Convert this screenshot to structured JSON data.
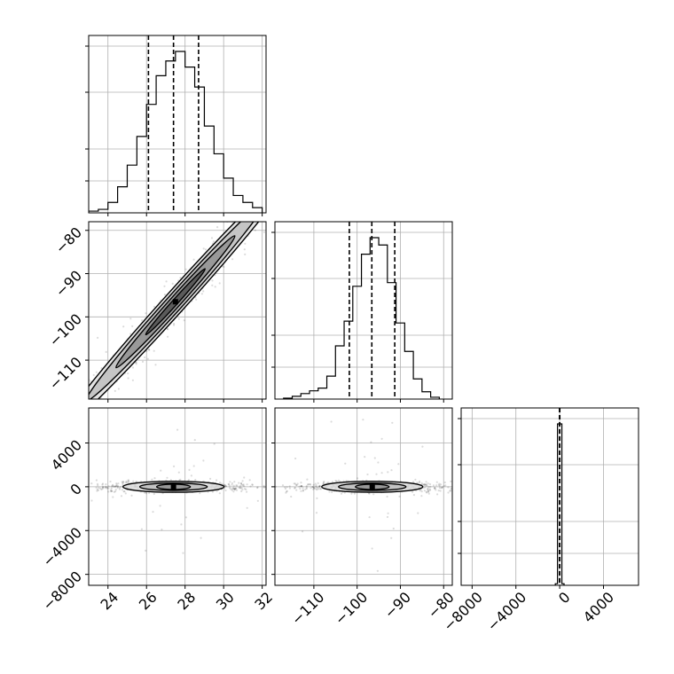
{
  "chart_data": {
    "type": "corner",
    "grid": true,
    "parameters": [
      {
        "range": [
          23,
          32.2
        ],
        "ticks": [
          24,
          26,
          28,
          30,
          32
        ],
        "tick_labels": [
          "24",
          "26",
          "28",
          "30",
          "32"
        ],
        "quantiles": [
          26.1,
          27.4,
          28.7
        ]
      },
      {
        "range": [
          -119,
          -78
        ],
        "ticks": [
          -110,
          -100,
          -90,
          -80
        ],
        "tick_labels": [
          "−110",
          "−100",
          "−90",
          "−80"
        ],
        "quantiles": [
          -101.8,
          -96.6,
          -91.3
        ]
      },
      {
        "range": [
          -9000,
          7200
        ],
        "ticks": [
          -8000,
          -4000,
          0,
          4000
        ],
        "tick_labels": [
          "−8000",
          "−4000",
          "0",
          "4000"
        ],
        "quantiles": [
          -10,
          0,
          10
        ]
      }
    ],
    "histograms": [
      {
        "param": 0,
        "bin_edges": [
          23,
          23.5,
          24,
          24.5,
          25,
          25.5,
          26,
          26.5,
          27,
          27.5,
          28,
          28.5,
          29,
          29.5,
          30,
          30.5,
          31,
          31.5,
          32
        ],
        "counts": [
          2,
          4,
          12,
          30,
          55,
          88,
          125,
          158,
          175,
          186,
          168,
          145,
          100,
          68,
          40,
          20,
          12,
          6
        ]
      },
      {
        "param": 1,
        "bin_edges": [
          -117,
          -115,
          -113,
          -111,
          -109,
          -107,
          -105,
          -103,
          -101,
          -99,
          -97,
          -95,
          -93,
          -91,
          -89,
          -87,
          -85,
          -83,
          -81
        ],
        "counts": [
          1,
          3,
          6,
          9,
          12,
          25,
          58,
          85,
          123,
          158,
          176,
          168,
          127,
          83,
          52,
          22,
          8,
          2
        ]
      },
      {
        "param": 2,
        "bin_edges": [
          -400,
          -200,
          200,
          400
        ],
        "counts": [
          2,
          200,
          2
        ]
      }
    ],
    "contours_2d": [
      {
        "x_param": 0,
        "y_param": 1,
        "center": [
          27.5,
          -96.5
        ],
        "rotation_deg": -48,
        "levels_sigma": [
          0.5,
          1,
          1.5,
          2
        ],
        "scale": [
          4.6,
          1.25
        ]
      },
      {
        "x_param": 0,
        "y_param": 2,
        "center": [
          27.4,
          0
        ],
        "rotation_deg": 0,
        "levels_sigma": [
          0.5,
          1,
          1.5
        ],
        "scale": [
          1.6,
          280
        ]
      },
      {
        "x_param": 1,
        "y_param": 2,
        "center": [
          -96.5,
          0
        ],
        "rotation_deg": 0,
        "levels_sigma": [
          0.5,
          1,
          1.5
        ],
        "scale": [
          4.5,
          280
        ]
      }
    ]
  }
}
